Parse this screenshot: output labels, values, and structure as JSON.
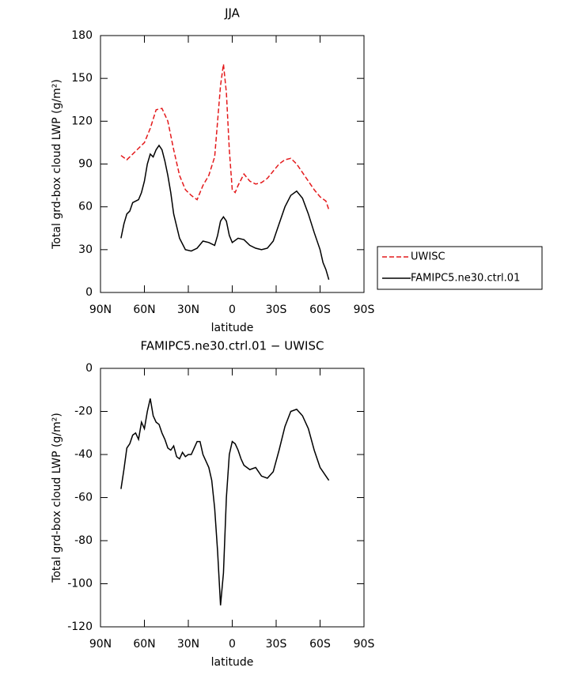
{
  "chart_data": [
    {
      "type": "line",
      "title": "JJA",
      "xlabel": "latitude",
      "ylabel": "Total grd-box cloud LWP (g/m²)",
      "xlim": [
        90,
        -90
      ],
      "xticks": [
        {
          "value": 90,
          "label": "90N"
        },
        {
          "value": 60,
          "label": "60N"
        },
        {
          "value": 30,
          "label": "30N"
        },
        0,
        {
          "value": -30,
          "label": "30S"
        },
        {
          "value": -60,
          "label": "60S"
        },
        {
          "value": -90,
          "label": "90S"
        }
      ],
      "ylim": [
        0,
        180
      ],
      "yticks": [
        0,
        30,
        60,
        90,
        120,
        150,
        180
      ],
      "legend": "right",
      "series": [
        {
          "name": "UWISC",
          "color": "#e41a1c",
          "linestyle": "dashed",
          "x": [
            76,
            72,
            68,
            64,
            60,
            56,
            52,
            48,
            44,
            40,
            36,
            32,
            28,
            24,
            20,
            16,
            12,
            10,
            8,
            6,
            4,
            2,
            0,
            -2,
            -4,
            -8,
            -12,
            -16,
            -20,
            -24,
            -28,
            -32,
            -36,
            -40,
            -44,
            -48,
            -52,
            -56,
            -60,
            -64,
            -66
          ],
          "values": [
            96,
            93,
            97,
            101,
            105,
            115,
            128,
            129,
            120,
            100,
            82,
            72,
            68,
            65,
            75,
            82,
            95,
            120,
            145,
            160,
            140,
            100,
            72,
            70,
            75,
            83,
            78,
            76,
            77,
            80,
            85,
            90,
            93,
            94,
            90,
            84,
            78,
            72,
            67,
            64,
            58
          ]
        },
        {
          "name": "FAMIPC5.ne30.ctrl.01",
          "color": "#000000",
          "linestyle": "solid",
          "x": [
            76,
            74,
            72,
            70,
            68,
            64,
            62,
            60,
            58,
            56,
            54,
            52,
            50,
            48,
            46,
            44,
            42,
            40,
            36,
            32,
            28,
            24,
            20,
            16,
            12,
            10,
            8,
            6,
            4,
            2,
            0,
            -4,
            -8,
            -12,
            -16,
            -20,
            -24,
            -28,
            -32,
            -36,
            -40,
            -44,
            -48,
            -52,
            -56,
            -60,
            -62,
            -64,
            -66
          ],
          "values": [
            38,
            48,
            55,
            57,
            63,
            65,
            70,
            78,
            90,
            97,
            95,
            100,
            103,
            100,
            92,
            82,
            70,
            55,
            38,
            30,
            29,
            31,
            36,
            35,
            33,
            40,
            50,
            53,
            50,
            40,
            35,
            38,
            37,
            33,
            31,
            30,
            31,
            36,
            48,
            60,
            68,
            71,
            66,
            55,
            42,
            30,
            21,
            16,
            9
          ]
        }
      ]
    },
    {
      "type": "line",
      "title": "FAMIPC5.ne30.ctrl.01 − UWISC",
      "xlabel": "latitude",
      "ylabel": "Total grd-box cloud LWP (g/m²)",
      "xlim": [
        90,
        -90
      ],
      "xticks": [
        {
          "value": 90,
          "label": "90N"
        },
        {
          "value": 60,
          "label": "60N"
        },
        {
          "value": 30,
          "label": "30N"
        },
        0,
        {
          "value": -30,
          "label": "30S"
        },
        {
          "value": -60,
          "label": "60S"
        },
        {
          "value": -90,
          "label": "90S"
        }
      ],
      "ylim": [
        -120,
        0
      ],
      "yticks": [
        0,
        -20,
        -40,
        -60,
        -80,
        -100,
        -120
      ],
      "series": [
        {
          "color": "#000000",
          "linestyle": "solid",
          "x": [
            76,
            74,
            72,
            70,
            68,
            66,
            64,
            62,
            60,
            58,
            56,
            54,
            52,
            50,
            48,
            46,
            44,
            42,
            40,
            38,
            36,
            34,
            32,
            30,
            28,
            26,
            24,
            22,
            20,
            18,
            16,
            14,
            12,
            10,
            8,
            6,
            4,
            2,
            0,
            -2,
            -4,
            -6,
            -8,
            -12,
            -16,
            -20,
            -24,
            -28,
            -32,
            -36,
            -40,
            -44,
            -48,
            -52,
            -56,
            -60,
            -62,
            -64,
            -66
          ],
          "values": [
            -56,
            -47,
            -37,
            -35,
            -31,
            -30,
            -33,
            -25,
            -28,
            -20,
            -14,
            -22,
            -25,
            -26,
            -30,
            -33,
            -37,
            -38,
            -36,
            -41,
            -42,
            -39,
            -41,
            -40,
            -40,
            -37,
            -34,
            -34,
            -40,
            -43,
            -46,
            -52,
            -65,
            -85,
            -110,
            -95,
            -60,
            -40,
            -34,
            -35,
            -38,
            -42,
            -45,
            -47,
            -46,
            -50,
            -51,
            -48,
            -38,
            -27,
            -20,
            -19,
            -22,
            -28,
            -38,
            -46,
            -48,
            -50,
            -52
          ]
        }
      ]
    }
  ]
}
